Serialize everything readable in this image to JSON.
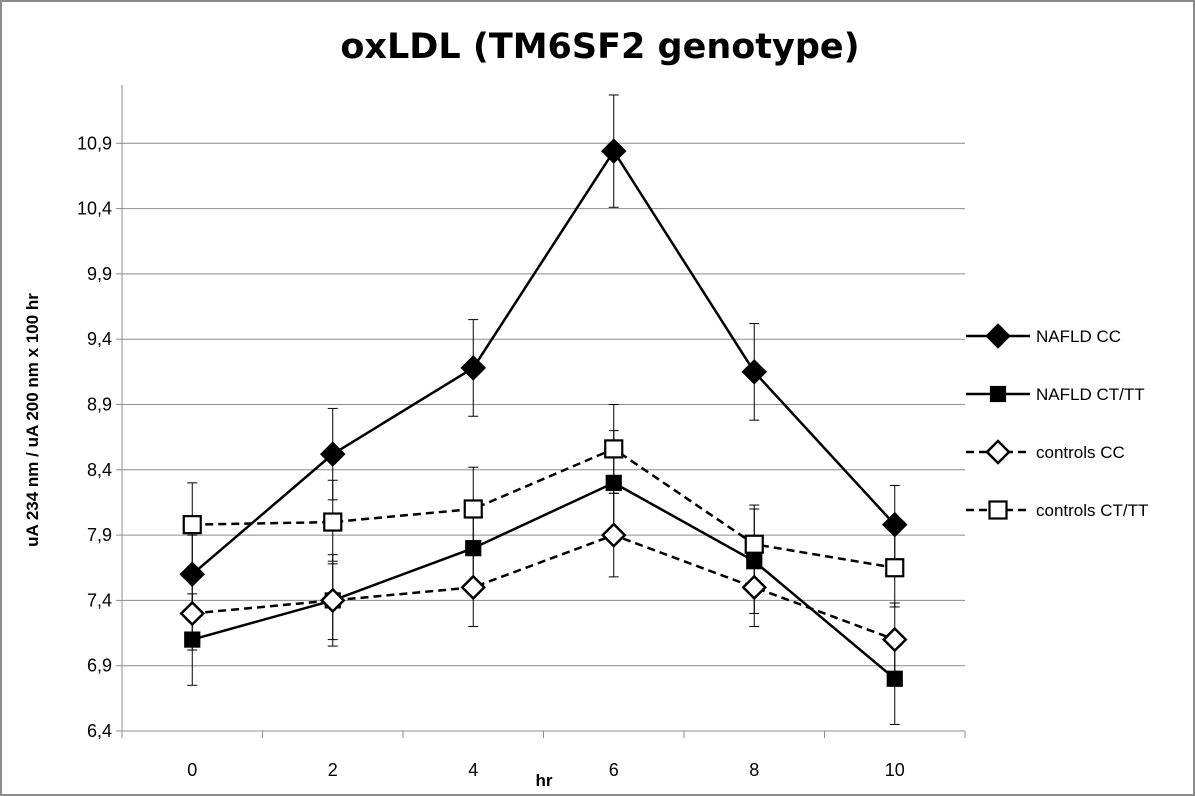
{
  "chart_data": {
    "type": "line",
    "title": "oxLDL (TM6SF2 genotype)",
    "xlabel": "hr",
    "ylabel": "uA 234 nm / uA 200 nm x 100 hr",
    "x": [
      0,
      2,
      4,
      6,
      8,
      10
    ],
    "x_tick_labels": [
      "0",
      "2",
      "4",
      "6",
      "8",
      "10"
    ],
    "ylim": [
      6.4,
      11.3
    ],
    "y_ticks": [
      6.4,
      6.9,
      7.4,
      7.9,
      8.4,
      8.9,
      9.4,
      9.9,
      10.4,
      10.9
    ],
    "y_tick_labels": [
      "6,4",
      "6,9",
      "7,4",
      "7,9",
      "8,4",
      "8,9",
      "9,4",
      "9,9",
      "10,4",
      "10,9"
    ],
    "grid": "horizontal",
    "legend_position": "right",
    "series": [
      {
        "name": "NAFLD CC",
        "values": [
          7.6,
          8.52,
          9.18,
          10.84,
          9.15,
          7.98
        ],
        "error": [
          0.3,
          0.35,
          0.37,
          0.43,
          0.37,
          0.3
        ],
        "marker": "diamond",
        "fill": "#000000",
        "dash": "solid"
      },
      {
        "name": "NAFLD CT/TT",
        "values": [
          7.1,
          7.4,
          7.8,
          8.3,
          7.7,
          6.8
        ],
        "error": [
          0.35,
          0.35,
          0.3,
          0.4,
          0.4,
          0.35
        ],
        "marker": "square",
        "fill": "#000000",
        "dash": "solid"
      },
      {
        "name": "controls CC",
        "values": [
          7.3,
          7.4,
          7.5,
          7.9,
          7.5,
          7.1
        ],
        "error": [
          0.28,
          0.3,
          0.3,
          0.32,
          0.3,
          0.28
        ],
        "marker": "diamond",
        "fill": "#ffffff",
        "dash": "dashed"
      },
      {
        "name": "controls CT/TT",
        "values": [
          7.98,
          8.0,
          8.1,
          8.56,
          7.83,
          7.65
        ],
        "error": [
          0.32,
          0.32,
          0.32,
          0.34,
          0.3,
          0.3
        ],
        "marker": "square",
        "fill": "#ffffff",
        "dash": "dashed"
      }
    ]
  }
}
